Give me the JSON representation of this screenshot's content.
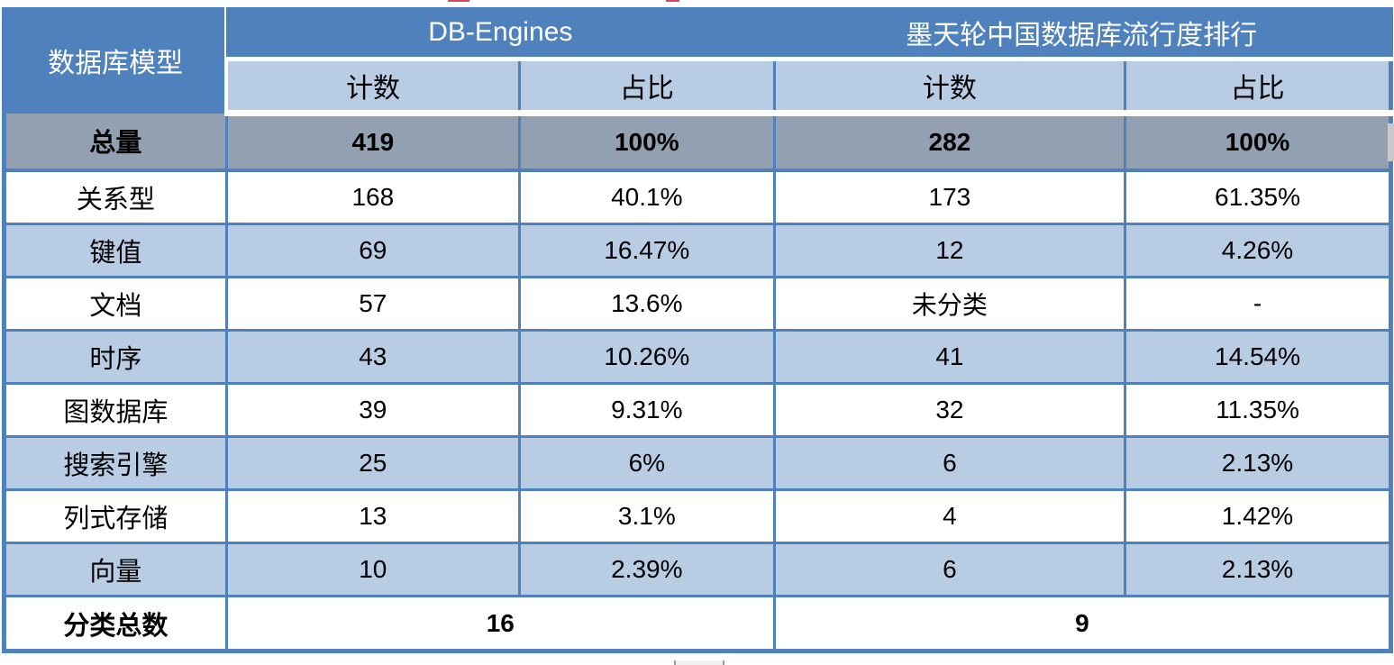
{
  "chart_data": {
    "type": "table",
    "corner_header": "数据库模型",
    "column_groups": [
      {
        "label": "DB-Engines",
        "columns": [
          "计数",
          "占比"
        ]
      },
      {
        "label": "墨天轮中国数据库流行度排行",
        "columns": [
          "计数",
          "占比"
        ]
      }
    ],
    "rows": [
      {
        "label": "总量",
        "values": [
          "419",
          "100%",
          "282",
          "100%"
        ],
        "style": "total"
      },
      {
        "label": "关系型",
        "values": [
          "168",
          "40.1%",
          "173",
          "61.35%"
        ],
        "style": "plain"
      },
      {
        "label": "键值",
        "values": [
          "69",
          "16.47%",
          "12",
          "4.26%"
        ],
        "style": "alt"
      },
      {
        "label": "文档",
        "values": [
          "57",
          "13.6%",
          "未分类",
          "-"
        ],
        "style": "plain"
      },
      {
        "label": "时序",
        "values": [
          "43",
          "10.26%",
          "41",
          "14.54%"
        ],
        "style": "alt"
      },
      {
        "label": "图数据库",
        "values": [
          "39",
          "9.31%",
          "32",
          "11.35%"
        ],
        "style": "plain"
      },
      {
        "label": "搜索引擎",
        "values": [
          "25",
          "6%",
          "6",
          "2.13%"
        ],
        "style": "alt"
      },
      {
        "label": "列式存储",
        "values": [
          "13",
          "3.1%",
          "4",
          "1.42%"
        ],
        "style": "plain"
      },
      {
        "label": "向量",
        "values": [
          "10",
          "2.39%",
          "6",
          "2.13%"
        ],
        "style": "alt"
      }
    ],
    "footer": {
      "label": "分类总数",
      "values": [
        "16",
        "9"
      ]
    }
  },
  "colors": {
    "header_blue": "#4F81BD",
    "sub_header_light_blue": "#B8CCE4",
    "total_row_gray": "#93A0B2",
    "alt_row_light_blue": "#B8CCE4",
    "border_blue": "#4F81BD",
    "header_text": "#FFFFFF",
    "body_text": "#000000"
  }
}
